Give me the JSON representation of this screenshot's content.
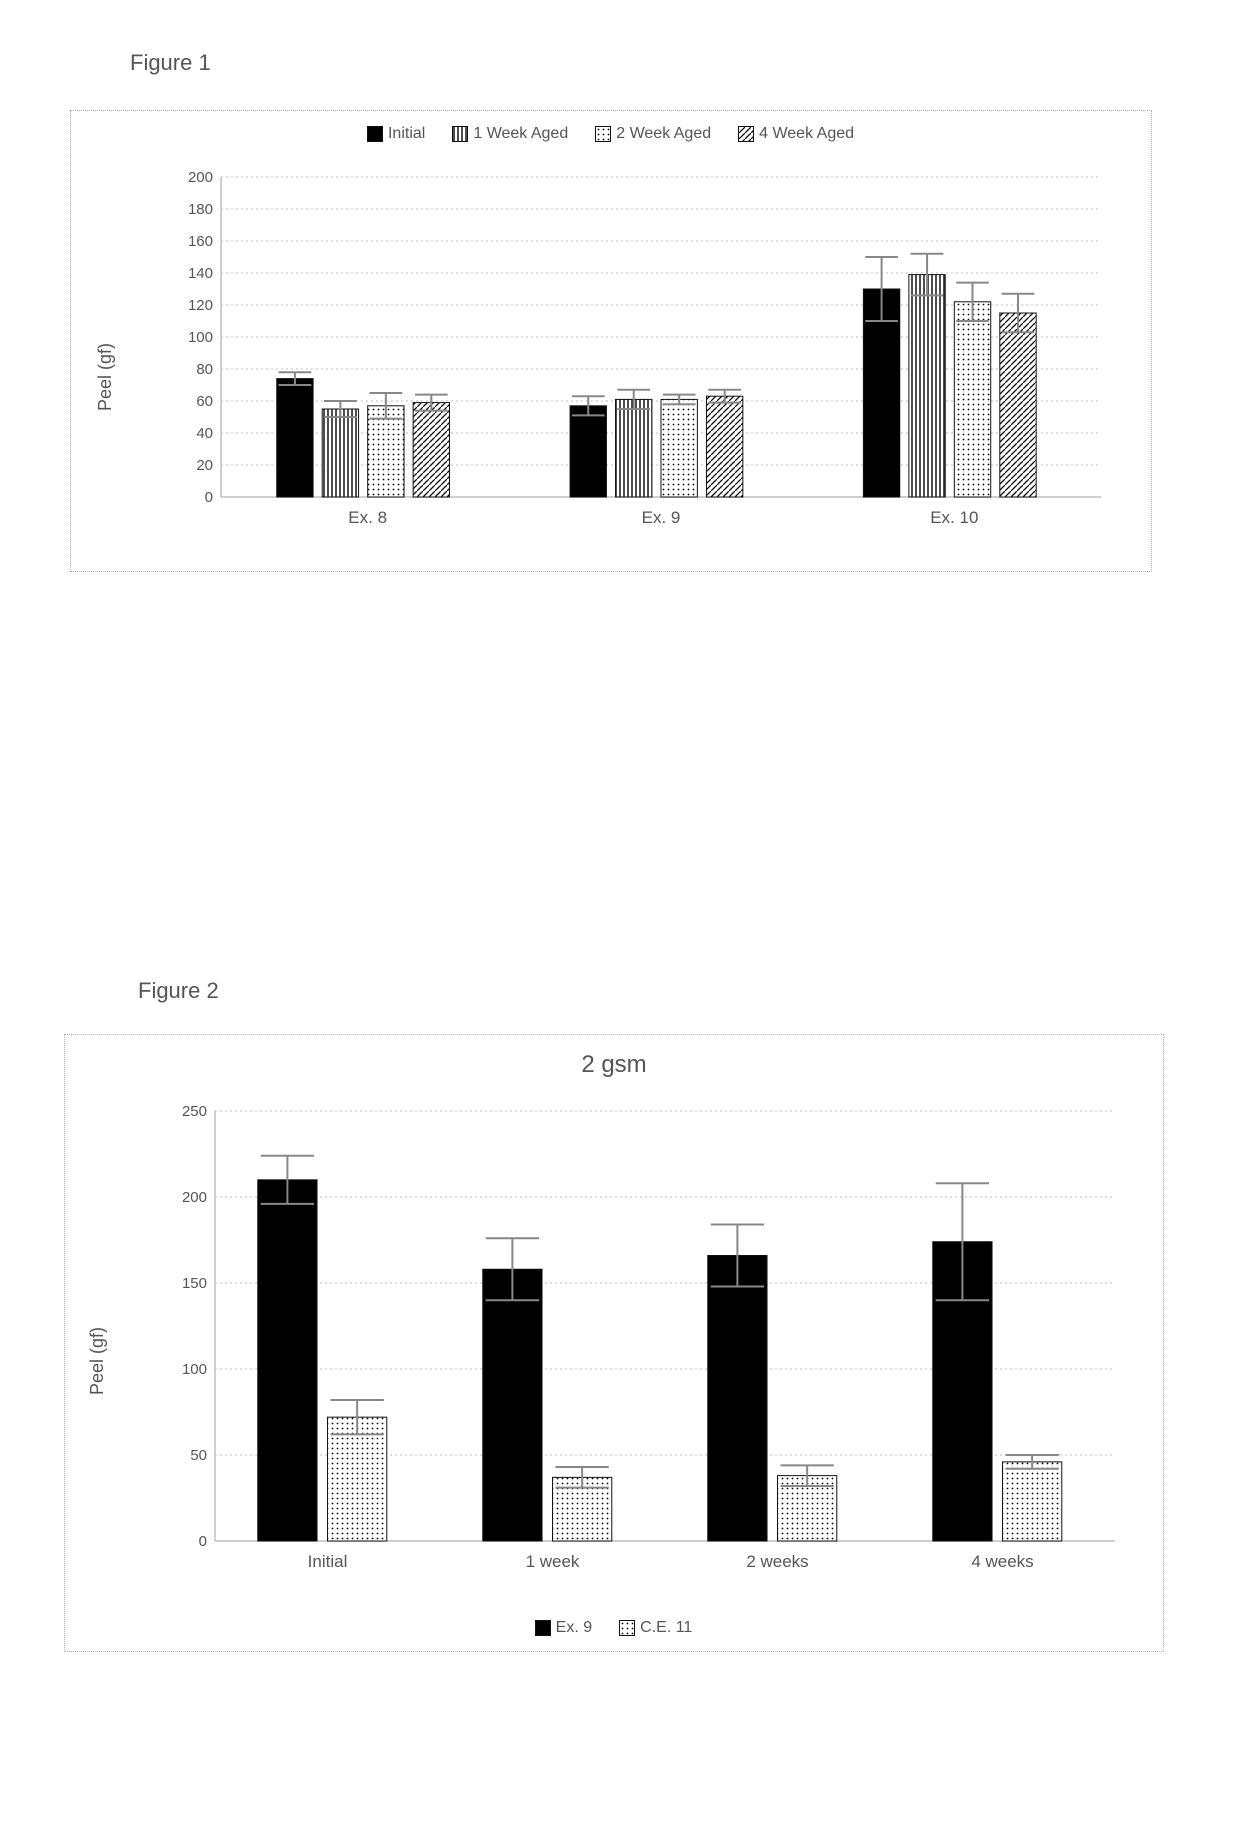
{
  "figure1": {
    "label": "Figure 1",
    "type": "bar",
    "ylabel": "Peel (gf)",
    "label_fontsize": 18,
    "tick_fontsize": 15,
    "ylim": [
      0,
      200
    ],
    "ytick_step": 20,
    "grid_color": "#bfbfbf",
    "axis_color": "#bfbfbf",
    "background_color": "#ffffff",
    "groups": [
      "Ex. 8",
      "Ex. 9",
      "Ex. 10"
    ],
    "series": [
      {
        "name": "Initial",
        "swatch_type": "solid",
        "swatch_color": "#000000"
      },
      {
        "name": "1 Week Aged",
        "swatch_type": "vlines",
        "swatch_color": "#000000"
      },
      {
        "name": "2 Week Aged",
        "swatch_type": "dots",
        "swatch_color": "#000000"
      },
      {
        "name": "4 Week Aged",
        "swatch_type": "diag",
        "swatch_color": "#000000"
      }
    ],
    "values": [
      [
        74,
        55,
        57,
        59
      ],
      [
        57,
        61,
        61,
        63
      ],
      [
        130,
        139,
        122,
        115
      ]
    ],
    "errors": [
      [
        4,
        5,
        8,
        5
      ],
      [
        6,
        6,
        3,
        4
      ],
      [
        20,
        13,
        12,
        12
      ]
    ],
    "bar_width": 0.8,
    "error_bar_color": "#888888"
  },
  "figure2": {
    "label": "Figure 2",
    "title": "2 gsm",
    "title_fontsize": 24,
    "type": "bar",
    "ylabel": "Peel (gf)",
    "label_fontsize": 18,
    "tick_fontsize": 15,
    "ylim": [
      0,
      250
    ],
    "ytick_step": 50,
    "grid_color": "#bfbfbf",
    "axis_color": "#bfbfbf",
    "background_color": "#ffffff",
    "groups": [
      "Initial",
      "1 week",
      "2 weeks",
      "4 weeks"
    ],
    "series": [
      {
        "name": "Ex. 9",
        "swatch_type": "solid",
        "swatch_color": "#000000"
      },
      {
        "name": "C.E. 11",
        "swatch_type": "dots",
        "swatch_color": "#000000"
      }
    ],
    "values": [
      [
        210,
        72
      ],
      [
        158,
        37
      ],
      [
        166,
        38
      ],
      [
        174,
        46
      ]
    ],
    "errors": [
      [
        14,
        10
      ],
      [
        18,
        6
      ],
      [
        18,
        6
      ],
      [
        34,
        4
      ]
    ],
    "bar_width": 0.85,
    "error_bar_color": "#888888"
  }
}
